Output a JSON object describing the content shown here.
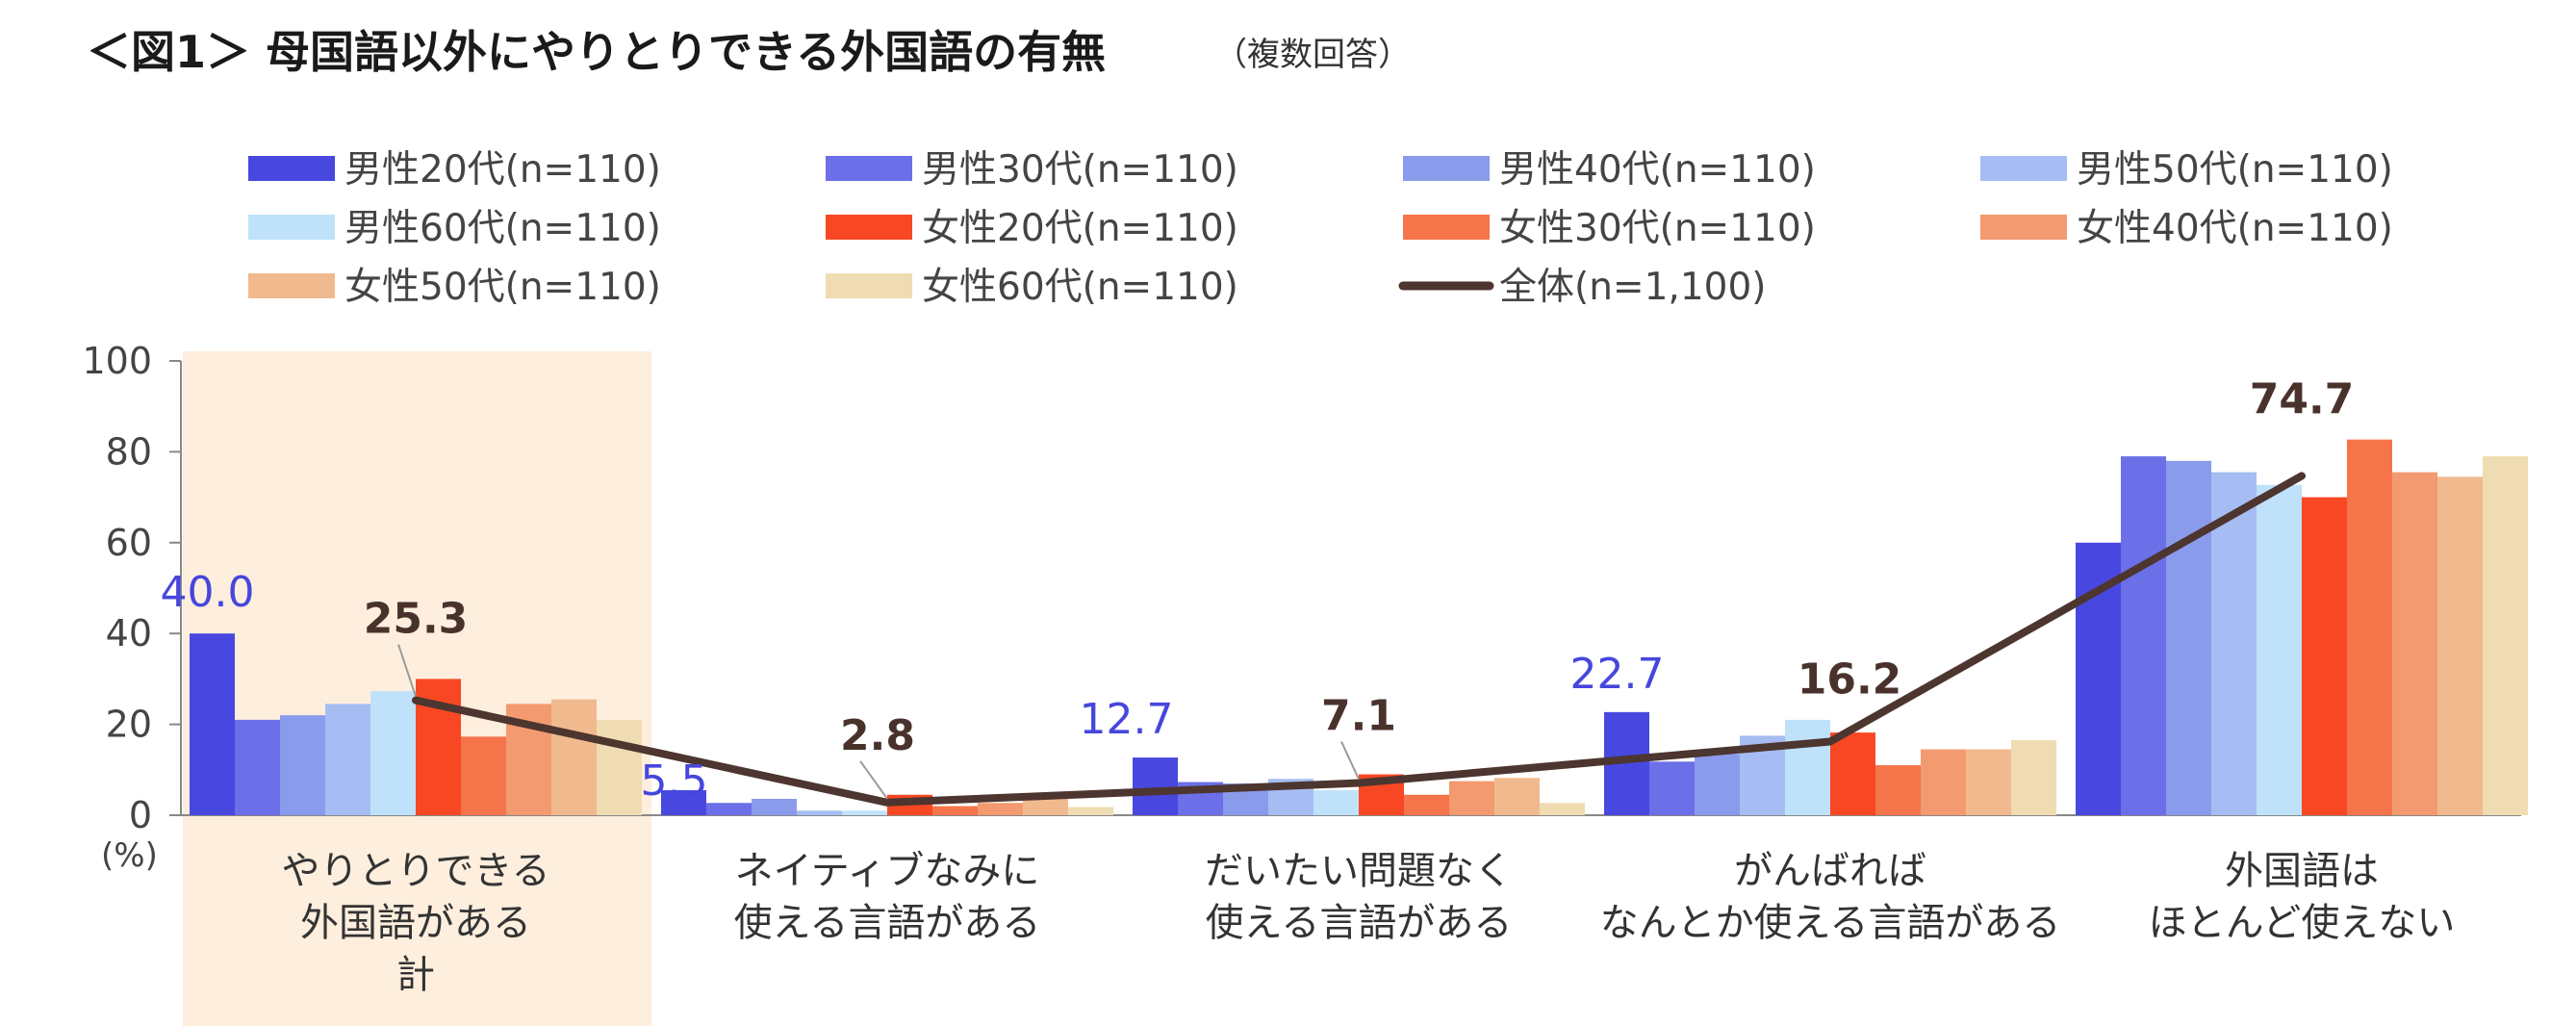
{
  "title": {
    "main": "＜図1＞ 母国語以外にやりとりできる外国語の有無",
    "sub": "（複数回答）"
  },
  "colors": {
    "series": [
      "#4848e0",
      "#6b6fe8",
      "#8a9bec",
      "#a6bdf3",
      "#bfe2fa",
      "#f74823",
      "#f5744a",
      "#f39a70",
      "#f1ba8e",
      "#efdcb2"
    ],
    "total_line": "#4d3530",
    "highlight_band": "#fdeedd",
    "axis": "#888888",
    "blue_label": "#4646dd",
    "total_label": "#4a322c"
  },
  "chart_data": {
    "type": "bar",
    "title": "＜図1＞ 母国語以外にやりとりできる外国語の有無（複数回答）",
    "ylabel": "(%)",
    "ylim": [
      0,
      100
    ],
    "yticks": [
      0,
      20,
      40,
      60,
      80,
      100
    ],
    "categories": [
      [
        "やりとりできる",
        "外国語がある",
        "計"
      ],
      [
        "ネイティブなみに",
        "使える言語がある"
      ],
      [
        "だいたい問題なく",
        "使える言語がある"
      ],
      [
        "がんばれば",
        "なんとか使える言語がある"
      ],
      [
        "外国語は",
        "ほとんど使えない"
      ]
    ],
    "highlight_category": 0,
    "series": [
      {
        "name": "男性20代(n=110)",
        "values": [
          40.0,
          5.5,
          12.7,
          22.7,
          60.0
        ]
      },
      {
        "name": "男性30代(n=110)",
        "values": [
          21.0,
          2.7,
          7.3,
          11.8,
          79.0
        ]
      },
      {
        "name": "男性40代(n=110)",
        "values": [
          22.0,
          3.6,
          7.0,
          13.5,
          78.0
        ]
      },
      {
        "name": "男性50代(n=110)",
        "values": [
          24.5,
          1.0,
          8.0,
          17.5,
          75.5
        ]
      },
      {
        "name": "男性60代(n=110)",
        "values": [
          27.3,
          1.0,
          5.5,
          21.0,
          72.7
        ]
      },
      {
        "name": "女性20代(n=110)",
        "values": [
          30.0,
          4.5,
          9.0,
          18.2,
          70.0
        ]
      },
      {
        "name": "女性30代(n=110)",
        "values": [
          17.3,
          2.0,
          4.5,
          11.0,
          82.7
        ]
      },
      {
        "name": "女性40代(n=110)",
        "values": [
          24.5,
          2.7,
          7.5,
          14.5,
          75.5
        ]
      },
      {
        "name": "女性50代(n=110)",
        "values": [
          25.5,
          3.6,
          8.2,
          14.5,
          74.5
        ]
      },
      {
        "name": "女性60代(n=110)",
        "values": [
          21.0,
          1.8,
          2.7,
          16.5,
          79.0
        ]
      }
    ],
    "line": {
      "name": "全体(n=1,100)",
      "values": [
        25.3,
        2.8,
        7.1,
        16.2,
        74.7
      ]
    },
    "data_labels": {
      "male20": [
        "40.0",
        "5.5",
        "12.7",
        "22.7"
      ],
      "total": [
        "25.3",
        "2.8",
        "7.1",
        "16.2",
        "74.7"
      ]
    }
  }
}
